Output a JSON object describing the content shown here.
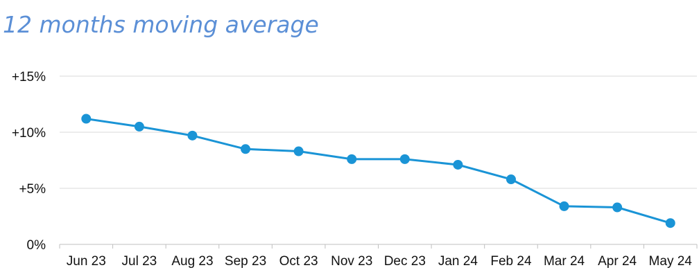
{
  "chart_data": {
    "type": "line",
    "title": "12 months moving average",
    "categories": [
      "Jun 23",
      "Jul 23",
      "Aug 23",
      "Sep 23",
      "Oct 23",
      "Nov 23",
      "Dec 23",
      "Jan 24",
      "Feb 24",
      "Mar 24",
      "Apr 24",
      "May 24"
    ],
    "series": [
      {
        "values": [
          11.2,
          10.5,
          9.7,
          8.5,
          8.3,
          7.6,
          7.6,
          7.1,
          5.8,
          3.4,
          3.3,
          1.9
        ],
        "color": "#1a94d6"
      }
    ],
    "y_ticks": [
      0,
      5,
      10,
      15
    ],
    "y_tick_labels": [
      "0%",
      "+5%",
      "+10%",
      "+15%"
    ],
    "ylim": [
      0,
      15
    ],
    "xlabel": "",
    "ylabel": "",
    "grid": true,
    "legend": "none",
    "colors": {
      "title": "#5b8fd6",
      "line": "#1a94d6",
      "grid": "#d9d9d9",
      "axis": "#bfbfbf"
    }
  }
}
